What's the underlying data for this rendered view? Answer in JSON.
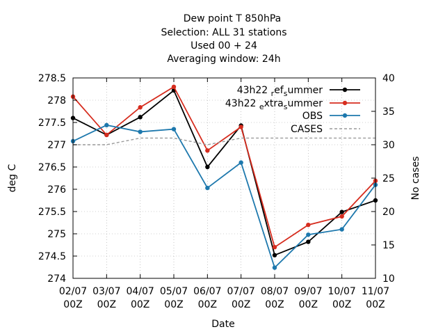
{
  "chart_data": {
    "type": "line",
    "title_lines": [
      "Dew point T 850hPa",
      "Selection: ALL     31 stations",
      "Used  00  + 24",
      "Averaging window: 24h"
    ],
    "xlabel": "Date",
    "ylabel": "deg C",
    "y2label": "No cases",
    "categories": [
      [
        "02/07",
        "00Z"
      ],
      [
        "03/07",
        "00Z"
      ],
      [
        "04/07",
        "00Z"
      ],
      [
        "05/07",
        "00Z"
      ],
      [
        "06/07",
        "00Z"
      ],
      [
        "07/07",
        "00Z"
      ],
      [
        "08/07",
        "00Z"
      ],
      [
        "09/07",
        "00Z"
      ],
      [
        "10/07",
        "00Z"
      ],
      [
        "11/07",
        "00Z"
      ]
    ],
    "ylim": [
      274,
      278.5
    ],
    "yticks": [
      "274",
      "274.5",
      "275",
      "275.5",
      "276",
      "276.5",
      "277",
      "277.5",
      "278",
      "278.5"
    ],
    "y2lim": [
      10,
      40
    ],
    "y2ticks": [
      "10",
      "15",
      "20",
      "25",
      "30",
      "35",
      "40"
    ],
    "grid": true,
    "legend_position": "top-right",
    "series": [
      {
        "name": "43h22 _ref_summer",
        "legend": {
          "main": "43h22 ",
          "sub": "r",
          "mid": "ef",
          "sub2": "s",
          "end": "ummer"
        },
        "color": "#000000",
        "axis": "left",
        "values": [
          277.6,
          277.22,
          277.62,
          278.22,
          276.5,
          277.43,
          274.52,
          274.82,
          275.49,
          275.75
        ]
      },
      {
        "name": "43h22 _extra_summer",
        "legend": {
          "main": "43h22 ",
          "sub": "e",
          "mid": "xtra",
          "sub2": "s",
          "end": "ummer"
        },
        "color": "#d62c1e",
        "axis": "left",
        "values": [
          278.08,
          277.22,
          277.84,
          278.3,
          276.87,
          277.4,
          274.7,
          275.2,
          275.39,
          276.19
        ]
      },
      {
        "name": "OBS",
        "legend": {
          "main": "OBS"
        },
        "color": "#1d78ad",
        "axis": "left",
        "values": [
          277.08,
          277.44,
          277.29,
          277.35,
          276.03,
          276.6,
          274.24,
          274.98,
          275.1,
          276.1
        ]
      },
      {
        "name": "CASES",
        "legend": {
          "main": "CASES"
        },
        "color": "#999999",
        "axis": "right",
        "dashed": true,
        "values": [
          30,
          30,
          31,
          31,
          30,
          31,
          31,
          31,
          31,
          31
        ]
      }
    ]
  }
}
